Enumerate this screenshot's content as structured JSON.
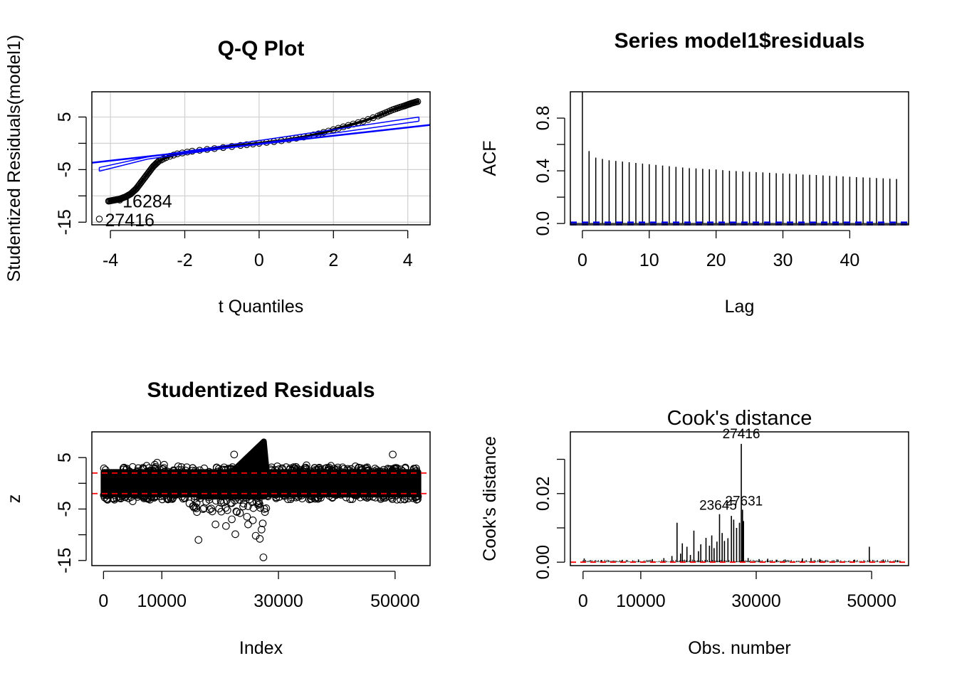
{
  "chart_data": [
    {
      "type": "scatter",
      "title": "Q-Q Plot",
      "xlabel": "t Quantiles",
      "ylabel": "Studentized Residuals(model1)",
      "xlim": [
        -4.5,
        4.6
      ],
      "ylim": [
        -15.5,
        9.8
      ],
      "xticks": [
        -4,
        -2,
        0,
        2,
        4
      ],
      "yticks": [
        -15,
        -10,
        -5,
        0,
        5
      ],
      "yticklabels": [
        "-15",
        "",
        "-5",
        "",
        "5"
      ],
      "grid": true,
      "reference_line": {
        "x": [
          -4.5,
          4.6
        ],
        "y": [
          -3.7,
          3.5
        ],
        "color": "#0000ff"
      },
      "envelope": {
        "lower": [
          [
            -4.3,
            -5.3
          ],
          [
            -3.0,
            -3.0
          ],
          [
            4.3,
            4.2
          ]
        ],
        "upper": [
          [
            -4.3,
            -4.6
          ],
          [
            -3.0,
            -2.6
          ],
          [
            4.3,
            5.0
          ]
        ],
        "color": "#0000ff"
      },
      "points_curve": [
        [
          -4.05,
          -11.0
        ],
        [
          -3.9,
          -10.8
        ],
        [
          -3.75,
          -10.6
        ],
        [
          -3.6,
          -10.2
        ],
        [
          -3.45,
          -9.6
        ],
        [
          -3.3,
          -8.6
        ],
        [
          -3.15,
          -7.2
        ],
        [
          -3.0,
          -5.8
        ],
        [
          -2.85,
          -4.4
        ],
        [
          -2.7,
          -3.4
        ],
        [
          -2.5,
          -2.7
        ],
        [
          -2.2,
          -2.0
        ],
        [
          -1.8,
          -1.5
        ],
        [
          -1.2,
          -1.0
        ],
        [
          -0.5,
          -0.4
        ],
        [
          0,
          0
        ],
        [
          0.6,
          0.5
        ],
        [
          1.2,
          1.2
        ],
        [
          1.6,
          1.8
        ],
        [
          2.0,
          2.6
        ],
        [
          2.4,
          3.4
        ],
        [
          2.8,
          4.2
        ],
        [
          3.2,
          5.2
        ],
        [
          3.6,
          6.4
        ],
        [
          3.9,
          7.1
        ],
        [
          4.1,
          7.6
        ],
        [
          4.3,
          8.0
        ]
      ],
      "labeled_points": [
        {
          "label": "16284",
          "x": -3.75,
          "y": -10.8
        },
        {
          "label": "27416",
          "x": -4.3,
          "y": -14.4
        }
      ]
    },
    {
      "type": "bar",
      "title": "Series  model1$residuals",
      "xlabel": "Lag",
      "ylabel": "ACF",
      "xlim": [
        -1.8,
        48.8
      ],
      "ylim": [
        -0.01,
        1.0
      ],
      "xticks": [
        0,
        10,
        20,
        30,
        40
      ],
      "yticks": [
        0.0,
        0.2,
        0.4,
        0.6,
        0.8
      ],
      "yticklabels": [
        "0.0",
        "",
        "0.4",
        "",
        "0.8"
      ],
      "lags": [
        0,
        1,
        2,
        3,
        4,
        5,
        6,
        7,
        8,
        9,
        10,
        11,
        12,
        13,
        14,
        15,
        16,
        17,
        18,
        19,
        20,
        21,
        22,
        23,
        24,
        25,
        26,
        27,
        28,
        29,
        30,
        31,
        32,
        33,
        34,
        35,
        36,
        37,
        38,
        39,
        40,
        41,
        42,
        43,
        44,
        45,
        46,
        47
      ],
      "acf": [
        1.0,
        0.55,
        0.5,
        0.49,
        0.48,
        0.475,
        0.47,
        0.465,
        0.46,
        0.455,
        0.45,
        0.445,
        0.44,
        0.435,
        0.43,
        0.425,
        0.42,
        0.418,
        0.415,
        0.412,
        0.41,
        0.405,
        0.4,
        0.398,
        0.395,
        0.392,
        0.39,
        0.388,
        0.385,
        0.382,
        0.38,
        0.378,
        0.375,
        0.372,
        0.37,
        0.368,
        0.365,
        0.362,
        0.36,
        0.358,
        0.355,
        0.352,
        0.35,
        0.348,
        0.345,
        0.343,
        0.34,
        0.338
      ],
      "ci": 0.009,
      "ci_color": "#0000ff"
    },
    {
      "type": "scatter",
      "title": "Studentized Residuals",
      "xlabel": "Index",
      "ylabel": "z",
      "xlim": [
        -2000,
        56000
      ],
      "ylim": [
        -16,
        10
      ],
      "xticks": [
        0,
        10000,
        30000,
        50000
      ],
      "yticks": [
        -15,
        -10,
        -5,
        0,
        5
      ],
      "yticklabels": [
        "-15",
        "",
        "-5",
        "",
        "5"
      ],
      "hlines": [
        2.0,
        -2.0
      ],
      "hline_color": "#ff0000",
      "n": 54000,
      "outliers": [
        [
          16284,
          -11.0
        ],
        [
          27416,
          -14.4
        ],
        [
          26800,
          -10.8
        ],
        [
          26100,
          -10.2
        ],
        [
          24800,
          -8.0
        ],
        [
          25600,
          -7.2
        ],
        [
          22000,
          -7.0
        ],
        [
          21000,
          -8.3
        ],
        [
          19200,
          -8.0
        ],
        [
          24600,
          -6.5
        ],
        [
          27100,
          -9.0
        ],
        [
          23400,
          -5.8
        ],
        [
          20200,
          -5.5
        ],
        [
          18200,
          -5.1
        ],
        [
          15800,
          -4.6
        ],
        [
          26500,
          -4.2
        ],
        [
          27300,
          -7.8
        ],
        [
          22600,
          -9.9
        ],
        [
          10400,
          3.6
        ],
        [
          9200,
          4.0
        ],
        [
          7400,
          3.4
        ],
        [
          22400,
          5.6
        ],
        [
          25200,
          4.1
        ],
        [
          49600,
          5.6
        ],
        [
          39000,
          3.4
        ],
        [
          45000,
          3.0
        ],
        [
          33000,
          3.2
        ],
        [
          43200,
          3.3
        ],
        [
          53600,
          2.9
        ],
        [
          5000,
          -3.5
        ],
        [
          700,
          -3.2
        ],
        [
          8800,
          3.6
        ],
        [
          12800,
          3.3
        ],
        [
          34800,
          3.5
        ],
        [
          41000,
          3.1
        ],
        [
          29800,
          3.3
        ],
        [
          36200,
          3.0
        ]
      ]
    },
    {
      "type": "bar",
      "title": "Cook's distance",
      "xlabel": "Obs. number",
      "ylabel": "Cook's distance",
      "xlim": [
        -2200,
        56400
      ],
      "ylim": [
        -0.001,
        0.038
      ],
      "xticks": [
        0,
        10000,
        30000,
        50000
      ],
      "yticks": [
        0.0,
        0.01,
        0.02,
        0.03
      ],
      "yticklabels": [
        "0.00",
        "",
        "0.02",
        ""
      ],
      "hline": 0.0,
      "hline_color": "#ff0000",
      "spikes": [
        [
          16284,
          0.0115
        ],
        [
          17200,
          0.0055
        ],
        [
          18000,
          0.0045
        ],
        [
          19200,
          0.0092
        ],
        [
          20000,
          0.0032
        ],
        [
          20400,
          0.0052
        ],
        [
          21300,
          0.0071
        ],
        [
          21900,
          0.0048
        ],
        [
          22300,
          0.0078
        ],
        [
          22700,
          0.0041
        ],
        [
          23200,
          0.006
        ],
        [
          23645,
          0.014
        ],
        [
          24100,
          0.0085
        ],
        [
          24500,
          0.0062
        ],
        [
          25100,
          0.007
        ],
        [
          25700,
          0.0135
        ],
        [
          26100,
          0.0124
        ],
        [
          26600,
          0.01
        ],
        [
          27100,
          0.0115
        ],
        [
          27416,
          0.0345
        ],
        [
          27631,
          0.0153
        ],
        [
          27800,
          0.012
        ],
        [
          49600,
          0.0045
        ],
        [
          200,
          0.0011
        ],
        [
          3200,
          0.0006
        ],
        [
          6800,
          0.0007
        ],
        [
          9600,
          0.0008
        ],
        [
          12000,
          0.0009
        ],
        [
          14000,
          0.0012
        ],
        [
          32000,
          0.001
        ],
        [
          35000,
          0.0008
        ],
        [
          38000,
          0.0011
        ],
        [
          41000,
          0.0009
        ],
        [
          44000,
          0.0008
        ],
        [
          47000,
          0.0007
        ],
        [
          52000,
          0.0008
        ],
        [
          54500,
          0.0006
        ],
        [
          15400,
          0.0018
        ],
        [
          16900,
          0.0025
        ],
        [
          18600,
          0.0021
        ],
        [
          28600,
          0.0012
        ],
        [
          30500,
          0.0009
        ],
        [
          33600,
          0.0007
        ],
        [
          39500,
          0.0012
        ]
      ],
      "labeled_points": [
        {
          "label": "27416",
          "x": 27416,
          "y": 0.0345
        },
        {
          "label": "27631",
          "x": 27631,
          "y": 0.0153
        },
        {
          "label": "23645",
          "x": 23645,
          "y": 0.014
        }
      ]
    }
  ]
}
